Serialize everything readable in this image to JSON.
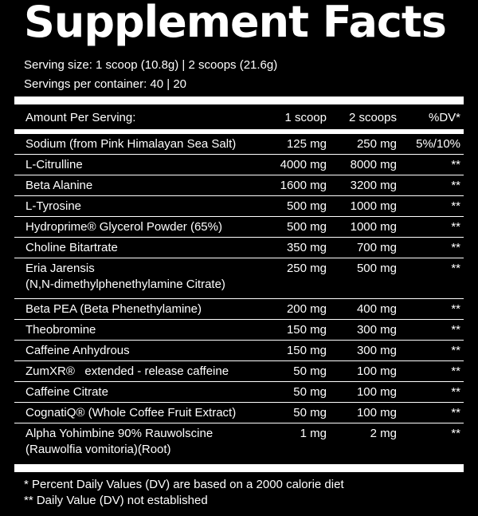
{
  "header": {
    "title": "Supplement Facts",
    "serving_size": "Serving size: 1 scoop (10.8g) | 2 scoops (21.6g)",
    "servings_per_container": "Servings per container: 40 | 20"
  },
  "table": {
    "columns": [
      "Amount Per Serving:",
      "1 scoop",
      "2 scoops",
      "%DV*"
    ],
    "rows": [
      {
        "name": "Sodium (from Pink Himalayan Sea Salt)",
        "scoop1": "125 mg",
        "scoop2": "250 mg",
        "dv": "5%/10%"
      },
      {
        "name": "L-Citrulline",
        "scoop1": "4000 mg",
        "scoop2": "8000 mg",
        "dv": "**"
      },
      {
        "name": "Beta Alanine",
        "scoop1": "1600 mg",
        "scoop2": "3200 mg",
        "dv": "**"
      },
      {
        "name": "L-Tyrosine",
        "scoop1": "500 mg",
        "scoop2": "1000 mg",
        "dv": "**"
      },
      {
        "name": "Hydroprime® Glycerol Powder (65%)",
        "scoop1": "500 mg",
        "scoop2": "1000 mg",
        "dv": "**"
      },
      {
        "name": "Choline Bitartrate",
        "scoop1": "350 mg",
        "scoop2": "700 mg",
        "dv": "**"
      },
      {
        "name": "Eria Jarensis",
        "sub": "(N,N-dimethylphenethylamine Citrate)",
        "scoop1": "250 mg",
        "scoop2": "500 mg",
        "dv": "**"
      },
      {
        "name": "Beta PEA (Beta Phenethylamine)",
        "scoop1": "200 mg",
        "scoop2": "400 mg",
        "dv": "**"
      },
      {
        "name": "Theobromine",
        "scoop1": "150 mg",
        "scoop2": "300 mg",
        "dv": "**"
      },
      {
        "name": "Caffeine Anhydrous",
        "scoop1": "150 mg",
        "scoop2": "300 mg",
        "dv": "**"
      },
      {
        "name": "ZumXR®   extended - release caffeine",
        "scoop1": "50 mg",
        "scoop2": "100 mg",
        "dv": "**"
      },
      {
        "name": "Caffeine Citrate",
        "scoop1": "50 mg",
        "scoop2": "100 mg",
        "dv": "**"
      },
      {
        "name": "CognatiQ® (Whole Coffee Fruit Extract)",
        "scoop1": "50 mg",
        "scoop2": "100 mg",
        "dv": "**"
      },
      {
        "name": "Alpha Yohimbine 90% Rauwolscine",
        "sub": "(Rauwolfia vomitoria)(Root)",
        "scoop1": "1 mg",
        "scoop2": "2 mg",
        "dv": "**"
      }
    ]
  },
  "footnotes": [
    "* Percent Daily Values (DV) are based on a 2000 calorie diet",
    "** Daily Value (DV) not established"
  ]
}
